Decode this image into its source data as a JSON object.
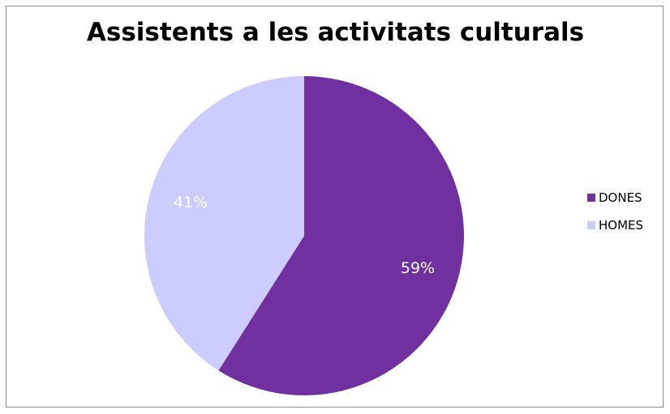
{
  "chart_data": {
    "type": "pie",
    "title": "Assistents a les activitats culturals",
    "categories": [
      "DONES",
      "HOMES"
    ],
    "values": [
      59,
      41
    ],
    "labels": [
      "59%",
      "41%"
    ],
    "colors": [
      "#7030a0",
      "#ccccff"
    ],
    "start_angle": "12 o'clock",
    "direction": "clockwise",
    "legend_position": "right"
  }
}
